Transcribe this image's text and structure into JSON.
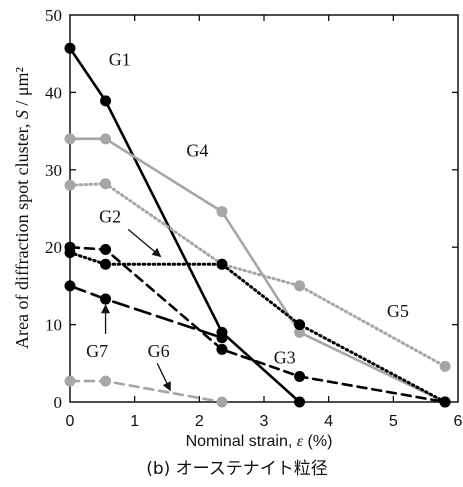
{
  "chart_data": {
    "type": "line",
    "title": "",
    "caption": "(b) オーステナイト粒径",
    "xlabel_text": "Nominal strain, ",
    "xlabel_symbol": "ε",
    "xlabel_unit": "  (%)",
    "ylabel_text": "Area of  diffraction spot cluster, ",
    "ylabel_symbol": "S",
    "ylabel_unit": " / μm²",
    "xlim": [
      0,
      6
    ],
    "ylim": [
      0,
      50
    ],
    "xticks": [
      "0",
      "1",
      "2",
      "3",
      "4",
      "5",
      "6"
    ],
    "yticks": [
      "0",
      "10",
      "20",
      "30",
      "40",
      "50"
    ],
    "grid": false,
    "series": [
      {
        "name": "G1",
        "color": "#000000",
        "dash": "solid",
        "x": [
          0,
          0.55,
          2.35,
          3.55
        ],
        "y": [
          45.7,
          38.9,
          9.0,
          0
        ]
      },
      {
        "name": "G4",
        "color": "#a6a6a6",
        "dash": "solid",
        "x": [
          0,
          0.55,
          2.35,
          3.55,
          5.8
        ],
        "y": [
          34.0,
          34.0,
          24.6,
          9.0,
          0
        ]
      },
      {
        "name": "G5",
        "color": "#a6a6a6",
        "dash": "dotted",
        "x": [
          0,
          0.55,
          2.35,
          3.55,
          5.8
        ],
        "y": [
          28.0,
          28.2,
          17.8,
          15.0,
          4.6
        ]
      },
      {
        "name": "G2",
        "color": "#000000",
        "dash": "dotted",
        "x": [
          0,
          0.55,
          2.35,
          3.55,
          5.8
        ],
        "y": [
          19.3,
          17.8,
          17.8,
          10.0,
          0
        ]
      },
      {
        "name": "G3",
        "color": "#000000",
        "dash": "dashed",
        "x": [
          0,
          0.55,
          2.35,
          3.55,
          5.8
        ],
        "y": [
          20.0,
          19.7,
          6.8,
          3.3,
          0
        ]
      },
      {
        "name": "G7",
        "color": "#000000",
        "dash": "longdash",
        "x": [
          0,
          0.55,
          2.35
        ],
        "y": [
          15.0,
          13.3,
          8.3
        ]
      },
      {
        "name": "G6",
        "color": "#a6a6a6",
        "dash": "dashed",
        "x": [
          0,
          0.55,
          2.35
        ],
        "y": [
          2.7,
          2.7,
          0
        ]
      }
    ],
    "annotations": [
      {
        "text": "G1",
        "x": 0.6,
        "y": 43.5,
        "color": "#000000"
      },
      {
        "text": "G4",
        "x": 1.8,
        "y": 31.7,
        "color": "#000000"
      },
      {
        "text": "G2",
        "x": 0.45,
        "y": 23.2,
        "color": "#000000",
        "arrow_from": [
          0.9,
          22.3
        ],
        "arrow_to": [
          1.4,
          18.8
        ]
      },
      {
        "text": "G5",
        "x": 4.9,
        "y": 11.0,
        "color": "#000000"
      },
      {
        "text": "G7",
        "x": 0.25,
        "y": 5.8,
        "color": "#000000",
        "arrow_from": [
          0.55,
          8.8
        ],
        "arrow_to": [
          0.55,
          12.5
        ]
      },
      {
        "text": "G6",
        "x": 1.2,
        "y": 5.8,
        "color": "#000000",
        "arrow_from": [
          1.35,
          5.0
        ],
        "arrow_to": [
          1.55,
          1.5
        ]
      },
      {
        "text": "G3",
        "x": 3.15,
        "y": 5.0,
        "color": "#000000"
      }
    ]
  }
}
